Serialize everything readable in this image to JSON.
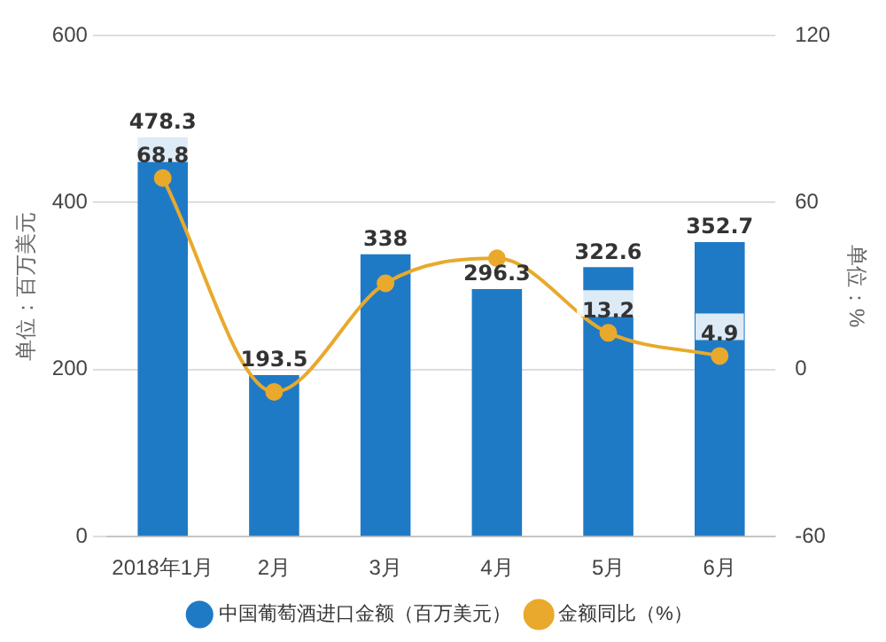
{
  "chart_data": {
    "type": "bar",
    "categories": [
      "2018年1月",
      "2月",
      "3月",
      "4月",
      "5月",
      "6月"
    ],
    "ylabel": "单位：百万美元",
    "y2label": "单位：%",
    "ylim": [
      0,
      600
    ],
    "yticks": [
      0,
      200,
      400,
      600
    ],
    "y2lim": [
      -60,
      120
    ],
    "y2ticks": [
      -60,
      0,
      60,
      120
    ],
    "grid": "y",
    "legend": "bottom",
    "marker": "circle",
    "series": [
      {
        "name": "中国葡萄酒进口金额（百万美元）",
        "color": "#1f7ac6",
        "values": [
          478.3,
          193.5,
          338,
          296.3,
          322.6,
          352.7
        ],
        "value_labels": [
          "478.3",
          "193.5",
          "338",
          "296.3",
          "322.6",
          "352.7"
        ]
      },
      {
        "name": "金额同比（%）",
        "type": "line",
        "axis": "y2",
        "color": "#e8a92c",
        "values": [
          68.8,
          -8,
          31,
          40,
          13.2,
          4.9
        ],
        "value_labels": [
          "68.8",
          null,
          null,
          null,
          "13.2",
          "4.9"
        ]
      }
    ]
  }
}
